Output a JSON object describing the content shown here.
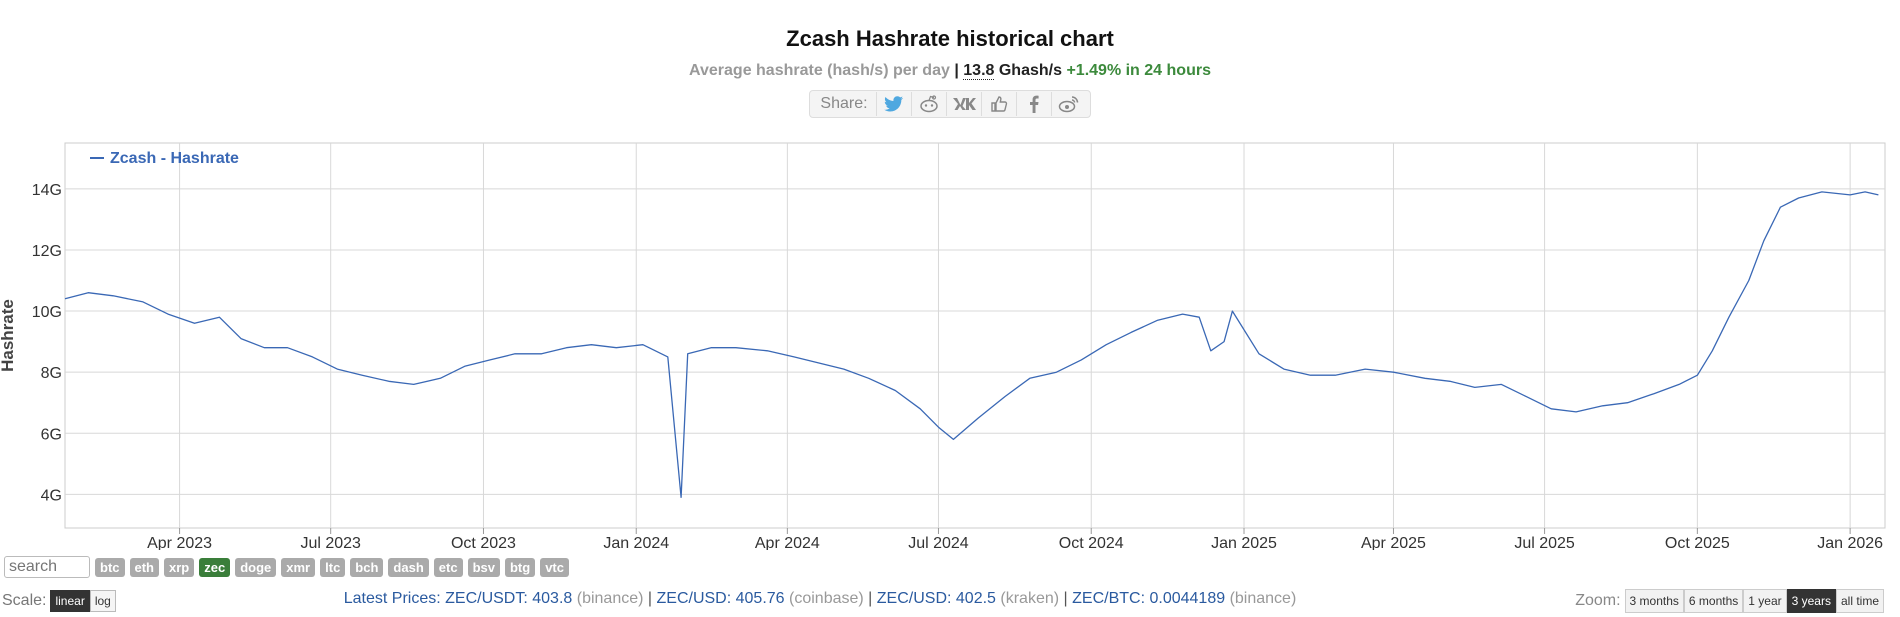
{
  "title": "Zcash Hashrate historical chart",
  "subtitle": {
    "text": "Average hashrate (hash/s) per day",
    "sep": "|",
    "value": "13.8",
    "unit": "Ghash/s",
    "change": "+1.49% in 24 hours"
  },
  "share": {
    "label": "Share:",
    "icons": [
      "twitter-icon",
      "reddit-icon",
      "vk-icon",
      "like-icon",
      "facebook-icon",
      "weibo-icon"
    ]
  },
  "colors": {
    "line": "#3a68b5",
    "grid": "#d8d8d8",
    "active_coin": "#3a7e3a",
    "change": "#3c8a3c",
    "link": "#2a5a9f"
  },
  "chart_data": {
    "type": "line",
    "title": "Zcash Hashrate historical chart",
    "ylabel": "Hashrate",
    "xlabel": "",
    "legend": {
      "label": "Zcash - Hashrate",
      "placement": "top-left"
    },
    "grid": true,
    "x_range": [
      "2023-01-22",
      "2026-01-22"
    ],
    "ylim": [
      2.9,
      15.5
    ],
    "y_ticks": [
      "4G",
      "6G",
      "8G",
      "10G",
      "12G",
      "14G"
    ],
    "y_tick_values": [
      4,
      6,
      8,
      10,
      12,
      14
    ],
    "x_ticks": [
      {
        "date": "2023-04-01",
        "label": "Apr 2023"
      },
      {
        "date": "2023-07-01",
        "label": "Jul 2023"
      },
      {
        "date": "2023-10-01",
        "label": "Oct 2023"
      },
      {
        "date": "2024-01-01",
        "label": "Jan 2024"
      },
      {
        "date": "2024-04-01",
        "label": "Apr 2024"
      },
      {
        "date": "2024-07-01",
        "label": "Jul 2024"
      },
      {
        "date": "2024-10-01",
        "label": "Oct 2024"
      },
      {
        "date": "2025-01-01",
        "label": "Jan 2025"
      },
      {
        "date": "2025-04-01",
        "label": "Apr 2025"
      },
      {
        "date": "2025-07-01",
        "label": "Jul 2025"
      },
      {
        "date": "2025-10-01",
        "label": "Oct 2025"
      },
      {
        "date": "2026-01-01",
        "label": "Jan 2026"
      }
    ],
    "series": [
      {
        "name": "Zcash - Hashrate",
        "unit": "Ghash/s",
        "points": [
          [
            "2023-01-22",
            10.4
          ],
          [
            "2023-02-05",
            10.6
          ],
          [
            "2023-02-20",
            10.5
          ],
          [
            "2023-03-10",
            10.3
          ],
          [
            "2023-03-25",
            9.9
          ],
          [
            "2023-04-10",
            9.6
          ],
          [
            "2023-04-25",
            9.8
          ],
          [
            "2023-05-08",
            9.1
          ],
          [
            "2023-05-22",
            8.8
          ],
          [
            "2023-06-05",
            8.8
          ],
          [
            "2023-06-20",
            8.5
          ],
          [
            "2023-07-05",
            8.1
          ],
          [
            "2023-07-20",
            7.9
          ],
          [
            "2023-08-05",
            7.7
          ],
          [
            "2023-08-20",
            7.6
          ],
          [
            "2023-09-05",
            7.8
          ],
          [
            "2023-09-20",
            8.2
          ],
          [
            "2023-10-05",
            8.4
          ],
          [
            "2023-10-20",
            8.6
          ],
          [
            "2023-11-05",
            8.6
          ],
          [
            "2023-11-20",
            8.8
          ],
          [
            "2023-12-05",
            8.9
          ],
          [
            "2023-12-20",
            8.8
          ],
          [
            "2024-01-05",
            8.9
          ],
          [
            "2024-01-20",
            8.5
          ],
          [
            "2024-01-28",
            3.9
          ],
          [
            "2024-02-01",
            8.6
          ],
          [
            "2024-02-15",
            8.8
          ],
          [
            "2024-03-01",
            8.8
          ],
          [
            "2024-03-20",
            8.7
          ],
          [
            "2024-04-05",
            8.5
          ],
          [
            "2024-04-20",
            8.3
          ],
          [
            "2024-05-05",
            8.1
          ],
          [
            "2024-05-20",
            7.8
          ],
          [
            "2024-06-05",
            7.4
          ],
          [
            "2024-06-20",
            6.8
          ],
          [
            "2024-07-01",
            6.2
          ],
          [
            "2024-07-10",
            5.8
          ],
          [
            "2024-07-25",
            6.5
          ],
          [
            "2024-08-10",
            7.2
          ],
          [
            "2024-08-25",
            7.8
          ],
          [
            "2024-09-10",
            8.0
          ],
          [
            "2024-09-25",
            8.4
          ],
          [
            "2024-10-10",
            8.9
          ],
          [
            "2024-10-25",
            9.3
          ],
          [
            "2024-11-10",
            9.7
          ],
          [
            "2024-11-25",
            9.9
          ],
          [
            "2024-12-05",
            9.8
          ],
          [
            "2024-12-12",
            8.7
          ],
          [
            "2024-12-20",
            9.0
          ],
          [
            "2024-12-25",
            10.0
          ],
          [
            "2025-01-10",
            8.6
          ],
          [
            "2025-01-25",
            8.1
          ],
          [
            "2025-02-10",
            7.9
          ],
          [
            "2025-02-25",
            7.9
          ],
          [
            "2025-03-15",
            8.1
          ],
          [
            "2025-04-01",
            8.0
          ],
          [
            "2025-04-20",
            7.8
          ],
          [
            "2025-05-05",
            7.7
          ],
          [
            "2025-05-20",
            7.5
          ],
          [
            "2025-06-05",
            7.6
          ],
          [
            "2025-06-20",
            7.2
          ],
          [
            "2025-07-05",
            6.8
          ],
          [
            "2025-07-20",
            6.7
          ],
          [
            "2025-08-05",
            6.9
          ],
          [
            "2025-08-20",
            7.0
          ],
          [
            "2025-09-05",
            7.3
          ],
          [
            "2025-09-20",
            7.6
          ],
          [
            "2025-10-01",
            7.9
          ],
          [
            "2025-10-10",
            8.7
          ],
          [
            "2025-10-20",
            9.8
          ],
          [
            "2025-11-01",
            11.0
          ],
          [
            "2025-11-10",
            12.3
          ],
          [
            "2025-11-20",
            13.4
          ],
          [
            "2025-12-01",
            13.7
          ],
          [
            "2025-12-15",
            13.9
          ],
          [
            "2026-01-01",
            13.8
          ],
          [
            "2026-01-10",
            13.9
          ],
          [
            "2026-01-18",
            13.8
          ]
        ]
      }
    ]
  },
  "coins": [
    "btc",
    "eth",
    "xrp",
    "zec",
    "doge",
    "xmr",
    "ltc",
    "bch",
    "dash",
    "etc",
    "bsv",
    "btg",
    "vtc"
  ],
  "active_coin": "zec",
  "search_placeholder": "search",
  "scale": {
    "label": "Scale:",
    "options": [
      "linear",
      "log"
    ],
    "active": "linear"
  },
  "prices": {
    "label": "Latest Prices:",
    "items": [
      {
        "pair": "ZEC/USDT: 403.8",
        "exchange": "(binance)"
      },
      {
        "pair": "ZEC/USD: 405.76",
        "exchange": "(coinbase)"
      },
      {
        "pair": "ZEC/USD: 402.5",
        "exchange": "(kraken)"
      },
      {
        "pair": "ZEC/BTC: 0.0044189",
        "exchange": "(binance)"
      }
    ],
    "sep": "|"
  },
  "zoom": {
    "label": "Zoom:",
    "options": [
      "3 months",
      "6 months",
      "1 year",
      "3 years",
      "all time"
    ],
    "active": "3 years"
  }
}
